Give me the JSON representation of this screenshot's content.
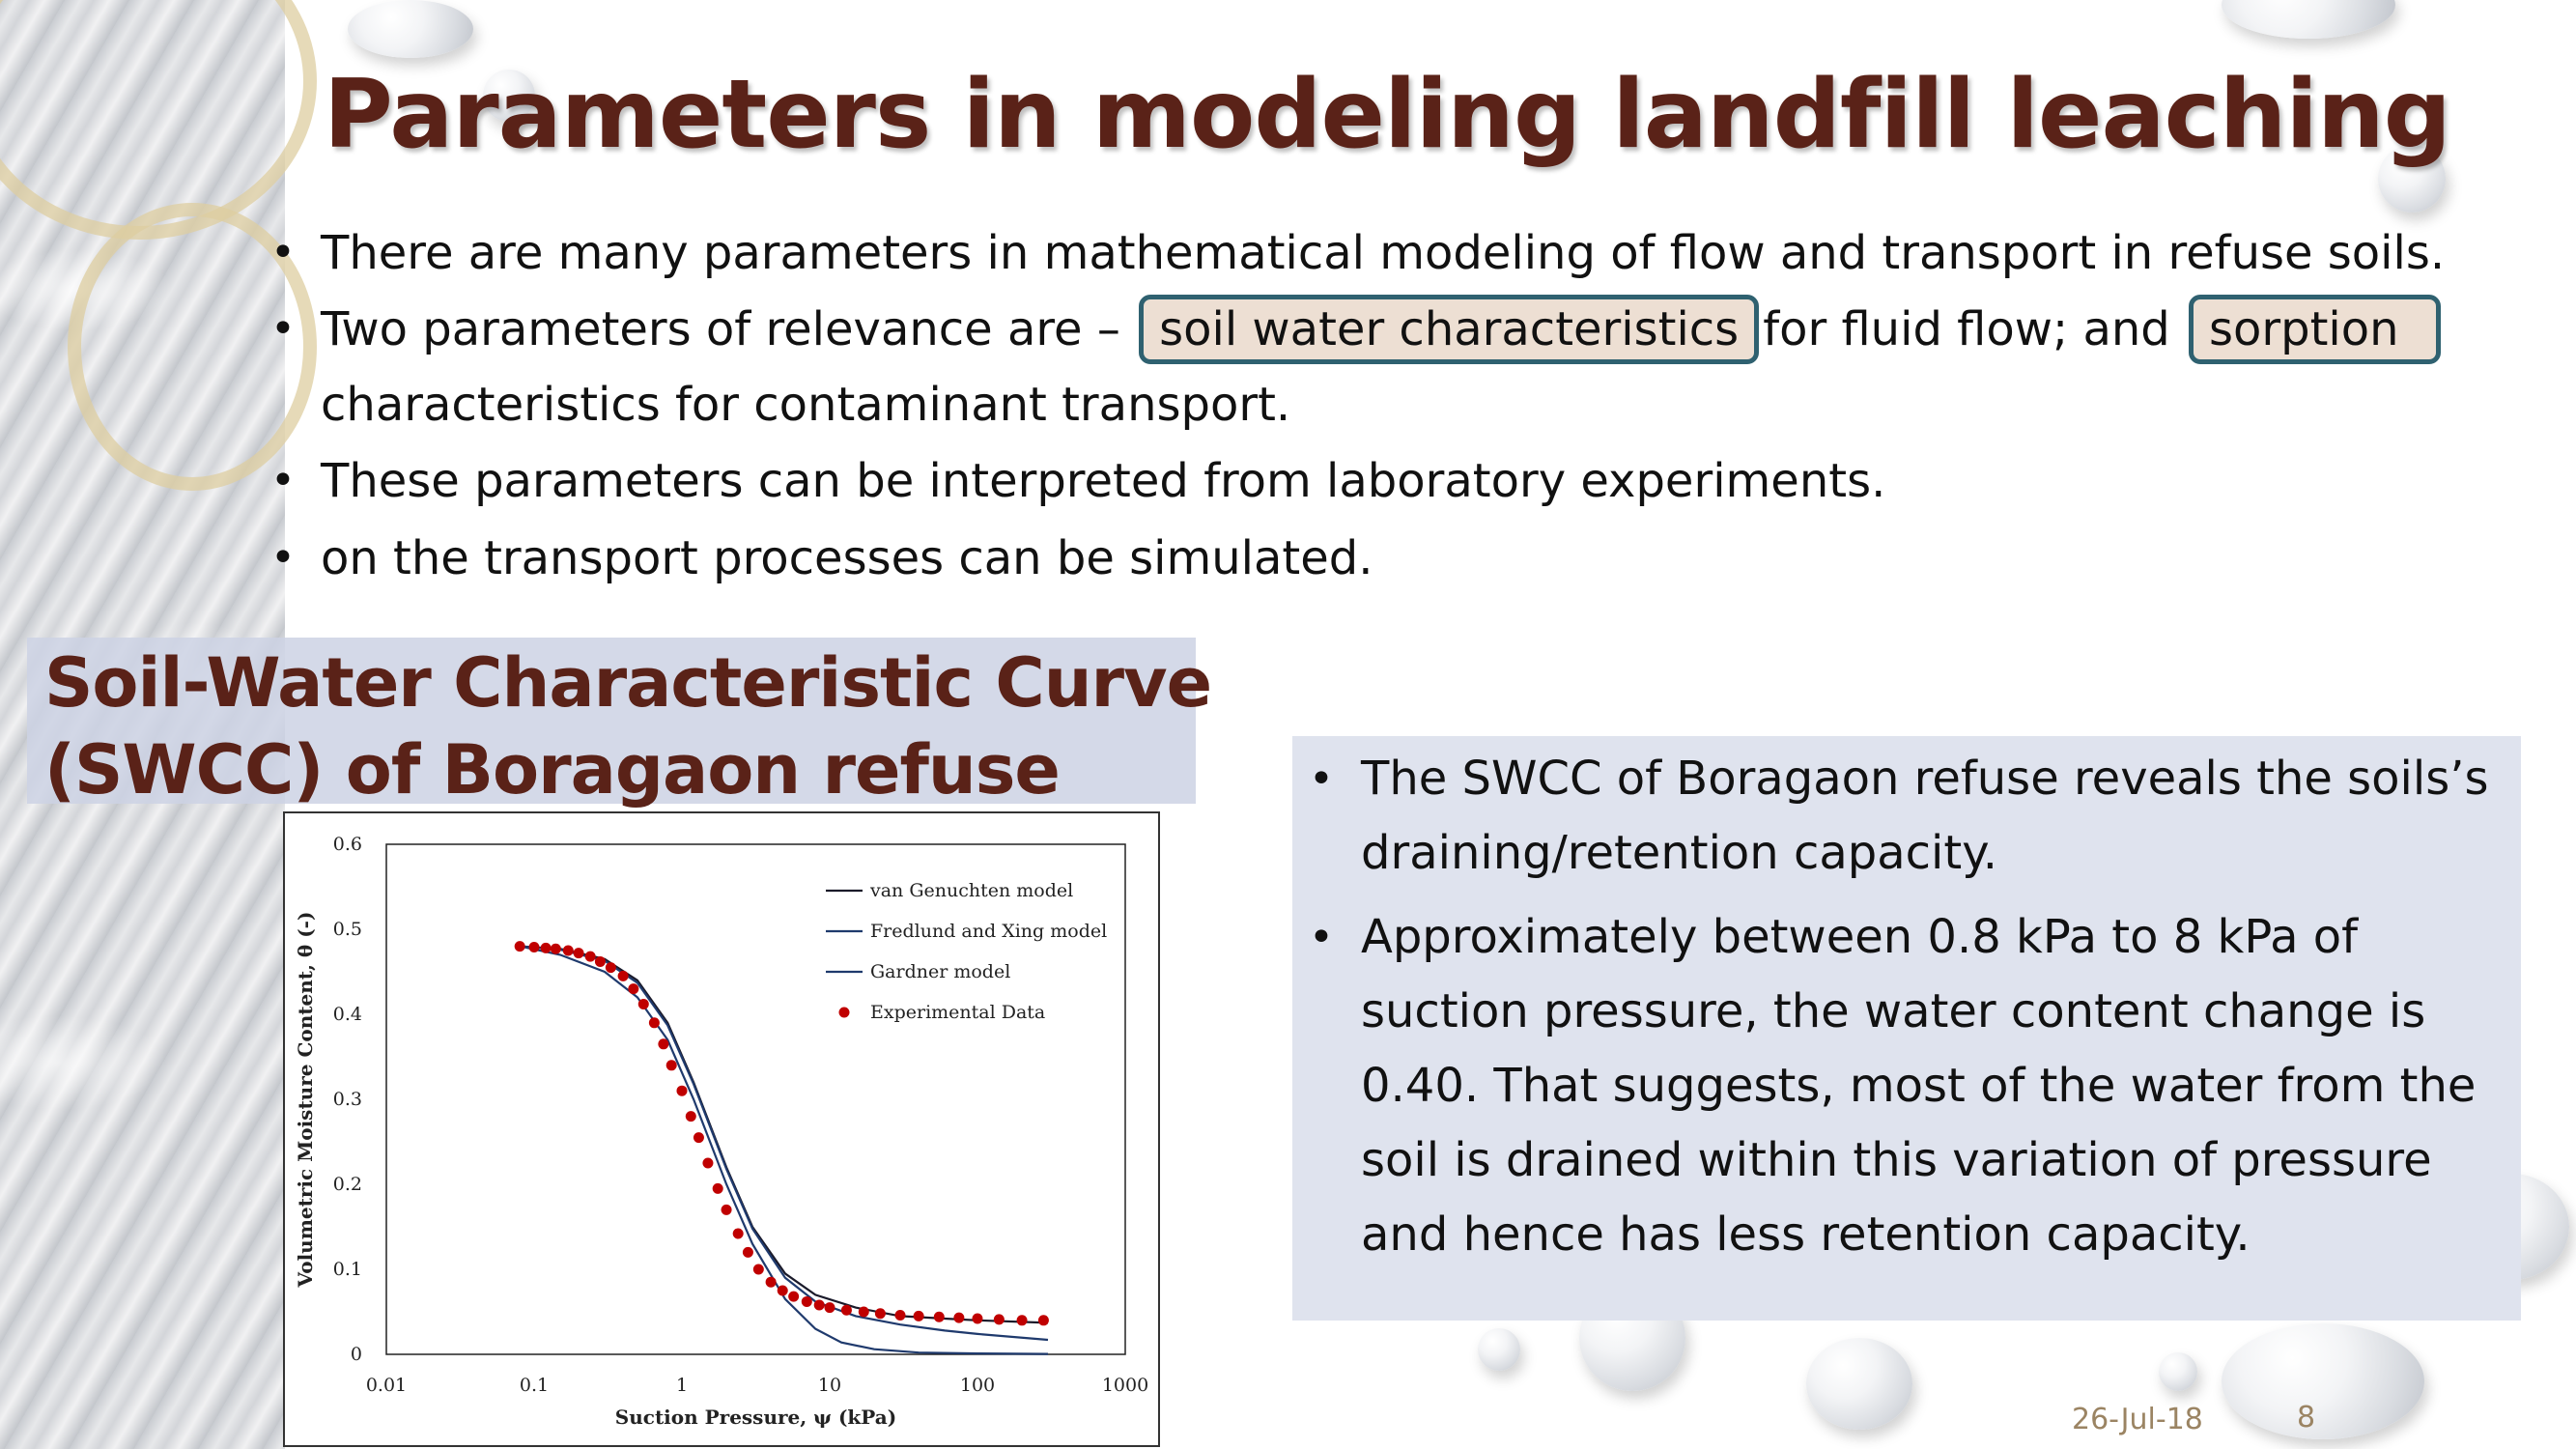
{
  "slide": {
    "title": "Parameters in modeling landfill leaching",
    "bullets": {
      "b1": "There are many parameters in mathematical modeling of flow and transport in refuse soils.",
      "b2_pre": "Two parameters of relevance are –",
      "b2_hl1": "soil water characteristics",
      "b2_mid": "for fluid flow; and",
      "b2_hl2": "sorption",
      "b2_post": "characteristics for contaminant transport.",
      "b3": "These parameters can be interpreted from laboratory experiments.",
      "b4": "on the transport processes can be simulated."
    },
    "subtitle_line1": "Soil-Water Characteristic Curve",
    "subtitle_line2": "(SWCC) of Boragaon refuse",
    "right_bullets": [
      "The SWCC of Boragaon refuse reveals the soils’s draining/retention capacity.",
      "Approximately between 0.8 kPa to 8 kPa of suction pressure, the water content change is 0.40. That suggests, most of the water from the soil is drained within this variation of pressure and hence has less retention capacity."
    ],
    "date": "26-Jul-18",
    "slide_number": "8"
  },
  "colors": {
    "title": "#5a2218",
    "highlight_fill": "#eddfd3",
    "highlight_border": "#2f6170",
    "panel": "#dfe3ee",
    "data_points": "#c00000",
    "model_lines": "#1f3a6d"
  },
  "chart_data": {
    "type": "scatter",
    "xscale": "log",
    "xlim": [
      0.01,
      1000
    ],
    "ylim": [
      0,
      0.6
    ],
    "xticks": [
      "0.01",
      "0.1",
      "1",
      "10",
      "100",
      "1000"
    ],
    "yticks": [
      "0",
      "0.1",
      "0.2",
      "0.3",
      "0.4",
      "0.5",
      "0.6"
    ],
    "xlabel": "Suction Pressure, ψ (kPa)",
    "ylabel": "Volumetric Moisture Content, θ (-)",
    "legend_position": "top-right",
    "legend": [
      "van Genuchten model",
      "Fredlund and Xing model",
      "Gardner model",
      "Experimental Data"
    ],
    "series": [
      {
        "name": "van Genuchten model",
        "kind": "line",
        "x": [
          0.08,
          0.15,
          0.3,
          0.5,
          0.8,
          1.2,
          2,
          3,
          5,
          8,
          15,
          30,
          60,
          100,
          300
        ],
        "y": [
          0.48,
          0.477,
          0.465,
          0.44,
          0.39,
          0.32,
          0.22,
          0.15,
          0.095,
          0.07,
          0.055,
          0.045,
          0.042,
          0.04,
          0.037
        ]
      },
      {
        "name": "Fredlund and Xing model",
        "kind": "line",
        "x": [
          0.08,
          0.15,
          0.3,
          0.5,
          0.8,
          1.2,
          2,
          3,
          5,
          8,
          15,
          30,
          60,
          100,
          300
        ],
        "y": [
          0.48,
          0.476,
          0.463,
          0.437,
          0.387,
          0.318,
          0.218,
          0.148,
          0.09,
          0.062,
          0.045,
          0.035,
          0.028,
          0.024,
          0.017
        ]
      },
      {
        "name": "Gardner model",
        "kind": "line",
        "x": [
          0.08,
          0.15,
          0.3,
          0.5,
          0.8,
          1.2,
          2,
          3,
          5,
          8,
          12,
          20,
          40,
          100,
          300
        ],
        "y": [
          0.48,
          0.47,
          0.45,
          0.42,
          0.37,
          0.3,
          0.2,
          0.13,
          0.065,
          0.03,
          0.014,
          0.006,
          0.002,
          0.001,
          0.0005
        ]
      },
      {
        "name": "Experimental Data",
        "kind": "points",
        "x": [
          0.08,
          0.1,
          0.12,
          0.14,
          0.17,
          0.2,
          0.24,
          0.28,
          0.33,
          0.4,
          0.47,
          0.55,
          0.65,
          0.75,
          0.85,
          1.0,
          1.15,
          1.3,
          1.5,
          1.75,
          2.0,
          2.4,
          2.8,
          3.3,
          4.0,
          4.8,
          5.7,
          7.0,
          8.5,
          10,
          13,
          17,
          22,
          30,
          40,
          55,
          75,
          100,
          140,
          200,
          280
        ],
        "y": [
          0.48,
          0.479,
          0.478,
          0.477,
          0.475,
          0.472,
          0.468,
          0.462,
          0.455,
          0.445,
          0.43,
          0.412,
          0.39,
          0.365,
          0.34,
          0.31,
          0.28,
          0.255,
          0.225,
          0.195,
          0.17,
          0.142,
          0.12,
          0.1,
          0.085,
          0.075,
          0.068,
          0.062,
          0.058,
          0.055,
          0.052,
          0.05,
          0.048,
          0.046,
          0.045,
          0.044,
          0.043,
          0.042,
          0.041,
          0.04,
          0.04
        ]
      }
    ]
  }
}
